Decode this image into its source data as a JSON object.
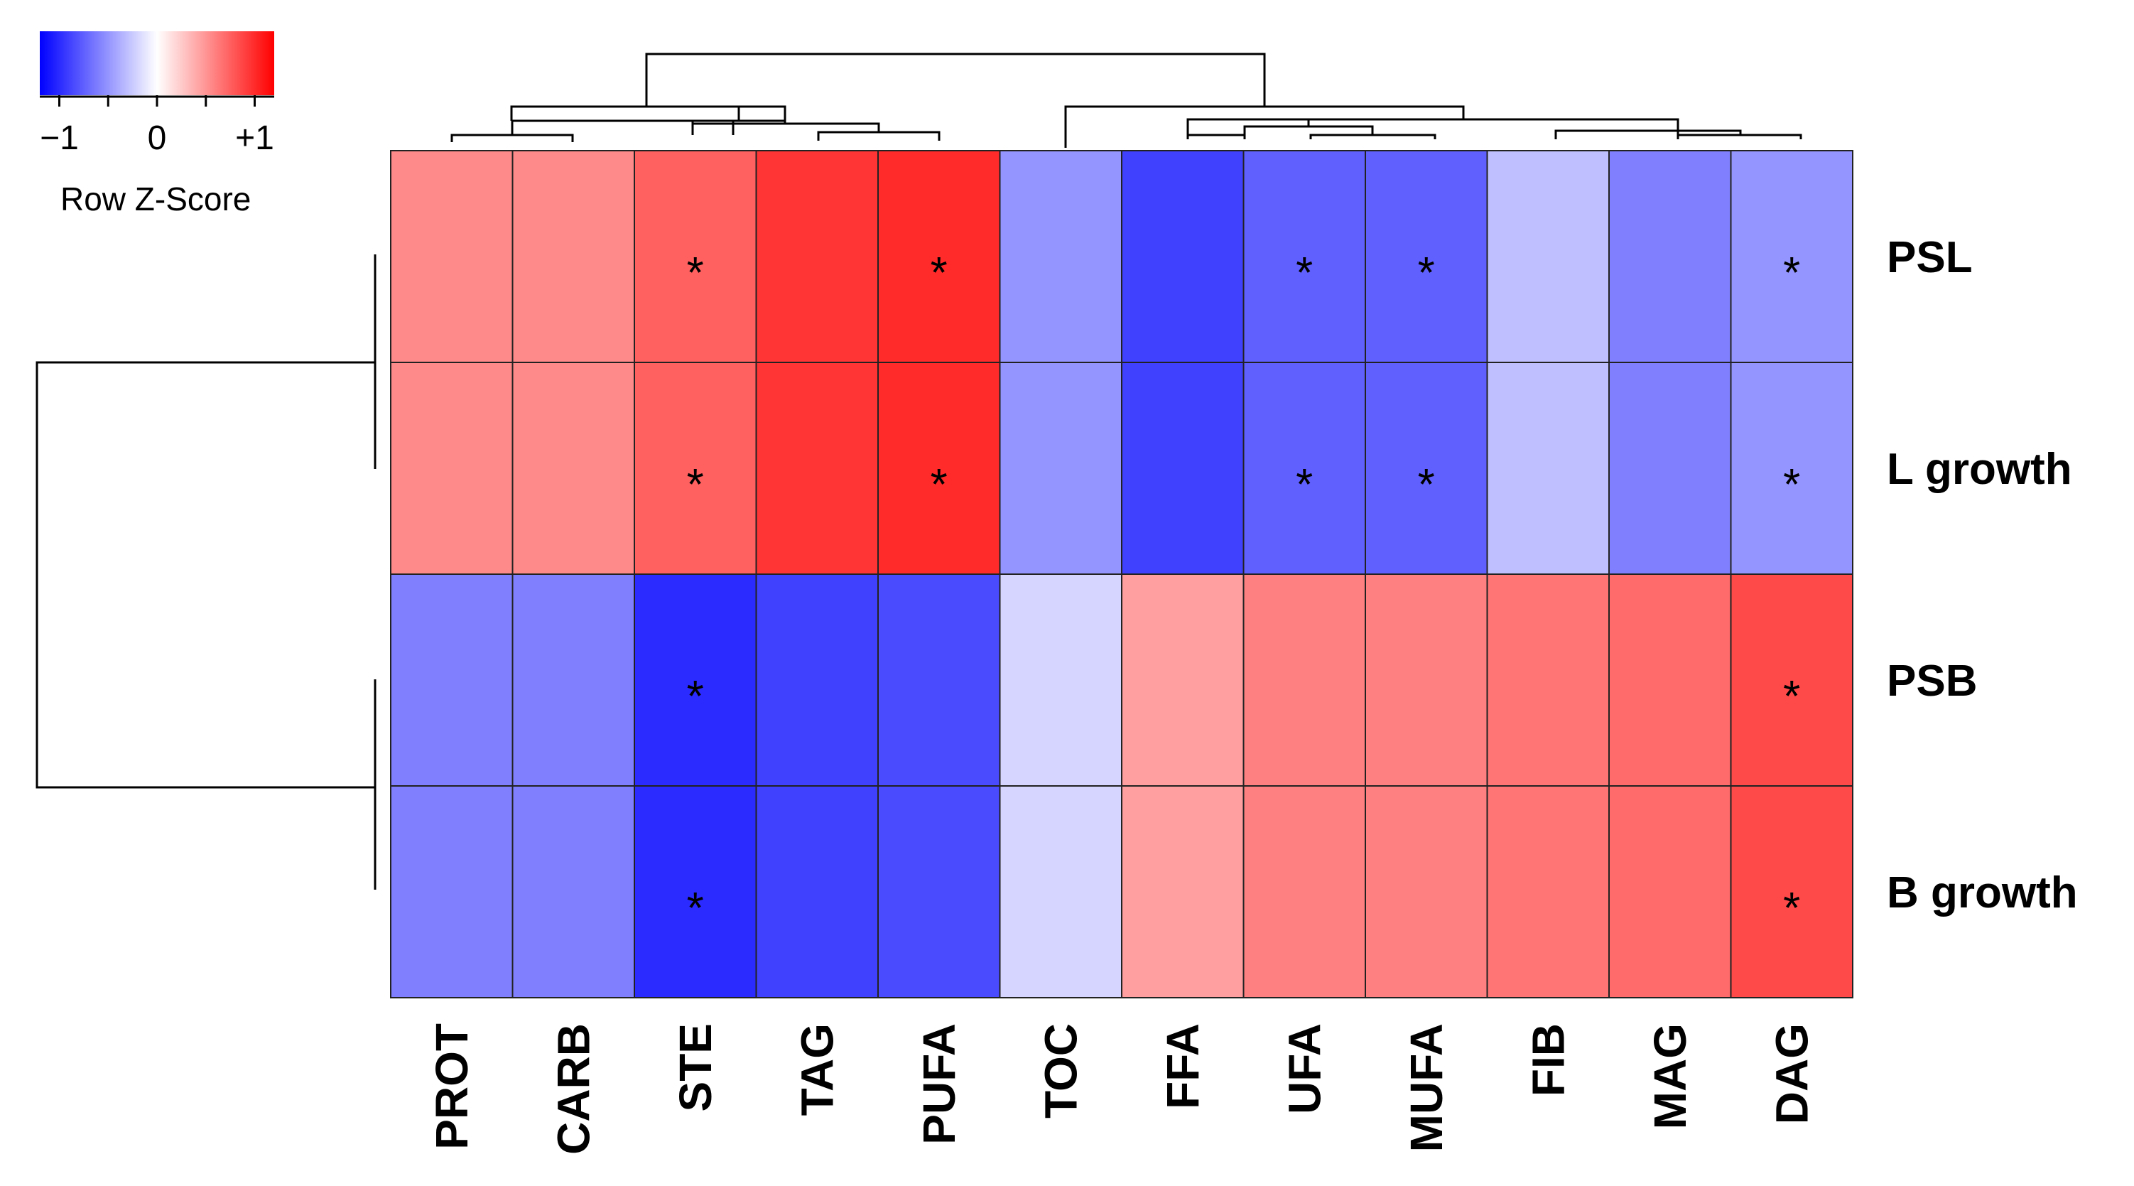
{
  "chart_data": {
    "type": "heatmap",
    "title": "",
    "columns": [
      "PROT",
      "CARB",
      "STE",
      "TAG",
      "PUFA",
      "TOC",
      "FFA",
      "UFA",
      "MUFA",
      "FIB",
      "MAG",
      "DAG"
    ],
    "rows": [
      "PSL",
      "L growth",
      "PSB",
      "B growth"
    ],
    "values": [
      [
        0.55,
        0.55,
        0.75,
        0.95,
        1.0,
        -0.5,
        -0.9,
        -0.75,
        -0.75,
        -0.3,
        -0.6,
        -0.5
      ],
      [
        0.55,
        0.55,
        0.75,
        0.95,
        1.0,
        -0.5,
        -0.9,
        -0.75,
        -0.75,
        -0.3,
        -0.6,
        -0.5
      ],
      [
        -0.6,
        -0.6,
        -1.0,
        -0.9,
        -0.85,
        -0.2,
        0.45,
        0.6,
        0.6,
        0.65,
        0.7,
        0.85
      ],
      [
        -0.6,
        -0.6,
        -1.0,
        -0.9,
        -0.85,
        -0.2,
        0.45,
        0.6,
        0.6,
        0.65,
        0.7,
        0.85
      ]
    ],
    "significant": [
      [
        false,
        false,
        true,
        false,
        true,
        false,
        false,
        true,
        true,
        false,
        false,
        true
      ],
      [
        false,
        false,
        true,
        false,
        true,
        false,
        false,
        true,
        true,
        false,
        false,
        true
      ],
      [
        false,
        false,
        true,
        false,
        false,
        false,
        false,
        false,
        false,
        false,
        false,
        true
      ],
      [
        false,
        false,
        true,
        false,
        false,
        false,
        false,
        false,
        false,
        false,
        false,
        true
      ]
    ],
    "significance_marker": "*",
    "color_scale": {
      "low_color": "#0000ff",
      "mid_color": "#ffffff",
      "high_color": "#ff0000",
      "range": [
        -1.2,
        1.2
      ],
      "ticks": [
        "−1",
        "0",
        "+1"
      ],
      "tick_values": [
        -1,
        0,
        1
      ],
      "title": "Row Z-Score"
    },
    "legend_placement": "top-left",
    "row_dendrogram": true,
    "column_dendrogram": true
  }
}
